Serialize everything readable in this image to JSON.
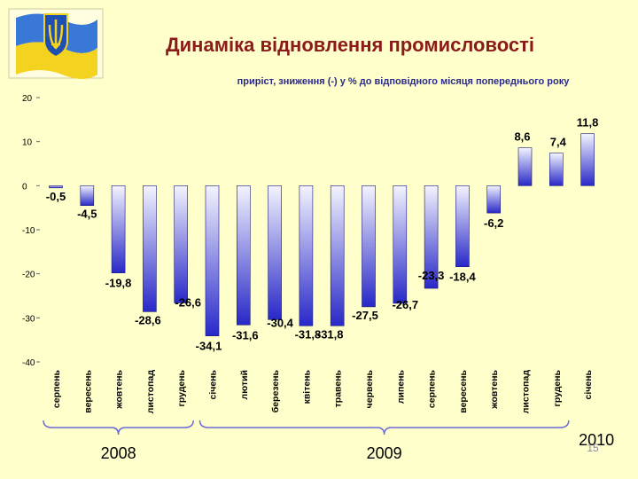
{
  "title": "Динаміка відновлення промисловості",
  "subtitle": "приріст, зниження (-) у % до відповідного місяця попереднього року",
  "page_number": "15",
  "emblem": "ukraine-flag-trident",
  "colors": {
    "background": "#ffffcc",
    "bar_top": "#f4f4ff",
    "bar_bottom": "#2828c8",
    "title": "#8b1a1a",
    "subtitle": "#2a2a8a",
    "brace": "#6b6bd6"
  },
  "chart_data": {
    "type": "bar",
    "ylim": [
      -40,
      20
    ],
    "yticks": [
      20,
      10,
      0,
      -10,
      -20,
      -30,
      -40
    ],
    "grid": false,
    "categories": [
      "серпень",
      "вересень",
      "жовтень",
      "листопад",
      "грудень",
      "січень",
      "лютий",
      "березень",
      "квітень",
      "травень",
      "червень",
      "липень",
      "серпень",
      "вересень",
      "жовтень",
      "листопад",
      "грудень",
      "січень"
    ],
    "values": [
      -0.5,
      -4.5,
      -19.8,
      -28.6,
      -26.6,
      -34.1,
      -31.6,
      -30.4,
      -31.8,
      -31.8,
      -27.5,
      -26.7,
      -23.3,
      -18.4,
      -6.2,
      8.6,
      7.4,
      11.8
    ],
    "value_labels": [
      "-0,5",
      "-4,5",
      "-19,8",
      "-28,6",
      "-26,6",
      "-34,1",
      "-31,6",
      "-30,4",
      "-31,8",
      "-31,8",
      "-27,5",
      "-26,7",
      "-23,3",
      "-18,4",
      "-6,2",
      "8,6",
      "7,4",
      "11,8"
    ],
    "groups": [
      {
        "label": "2008",
        "from": 0,
        "to": 4
      },
      {
        "label": "2009",
        "from": 5,
        "to": 16
      },
      {
        "label": "2010",
        "from": 17,
        "to": 17
      }
    ]
  }
}
